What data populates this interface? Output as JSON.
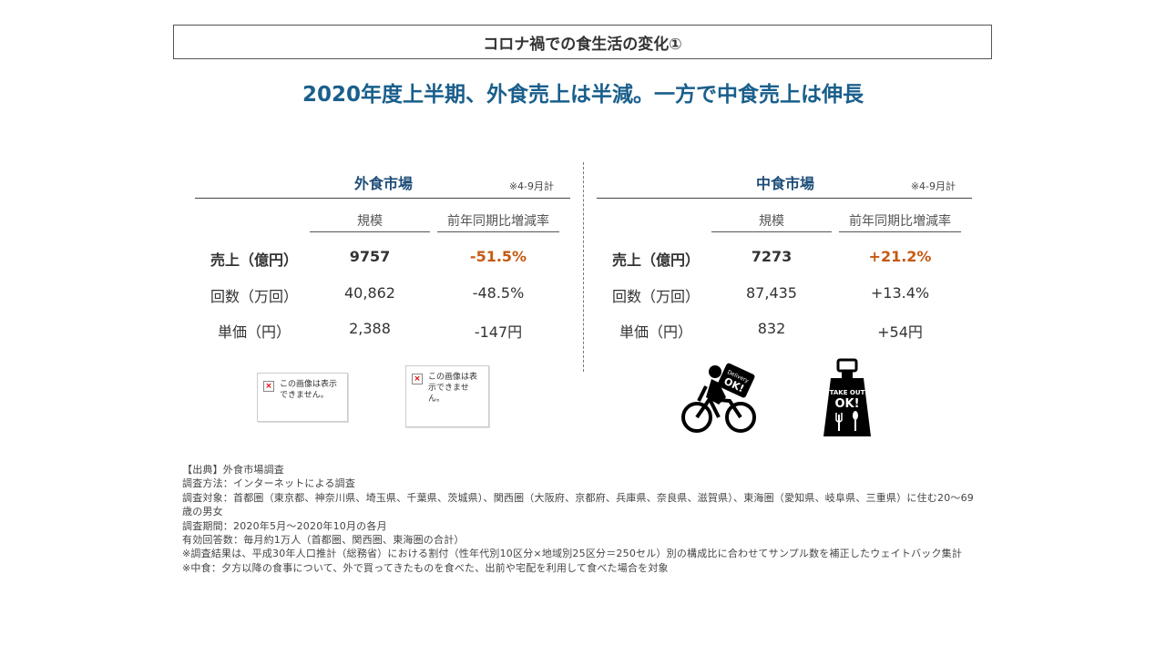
{
  "title": "コロナ禍での食生活の変化①",
  "subtitle": "2020年度上半期、外食売上は半減。一方で中食売上は伸長",
  "col_headers": {
    "scale": "規模",
    "yoy": "前年同期比増減率"
  },
  "period_note": "※4-9月計",
  "gaishoku": {
    "title": "外食市場",
    "rows": [
      {
        "label": "売上（億円）",
        "scale": "9757",
        "yoy": "-51.5%"
      },
      {
        "label": "回数（万回）",
        "scale": "40,862",
        "yoy": "-48.5%"
      },
      {
        "label": "単価（円）",
        "scale": "2,388",
        "yoy": "-147円"
      }
    ]
  },
  "nakashoku": {
    "title": "中食市場",
    "rows": [
      {
        "label": "売上（億円）",
        "scale": "7273",
        "yoy": "+21.2%"
      },
      {
        "label": "回数（万回）",
        "scale": "87,435",
        "yoy": "+13.4%"
      },
      {
        "label": "単価（円）",
        "scale": "832",
        "yoy": "+54円"
      }
    ]
  },
  "broken_image_1": "この画像は表示できません。",
  "broken_image_2": "この画像は表示できません。",
  "icons": {
    "delivery_bag_text1": "Delivery",
    "delivery_bag_text2": "OK!",
    "takeout_text1": "TAKE OUT",
    "takeout_text2": "OK!"
  },
  "source_lines": [
    "【出典】外食市場調査",
    "調査方法：インターネットによる調査",
    "調査対象：首都圏（東京都、神奈川県、埼玉県、千葉県、茨城県）、関西圏（大阪府、京都府、兵庫県、奈良県、滋賀県）、東海圏（愛知県、岐阜県、三重県）に住む20～69歳の男女",
    "調査期間：2020年5月～2020年10月の各月",
    "有効回答数：毎月約1万人（首都圏、関西圏、東海圏の合計）",
    "※調査結果は、平成30年人口推計（総務省）における割付（性年代別10区分×地域別25区分＝250セル）別の構成比に合わせてサンプル数を補正したウェイトバック集計",
    "※中食：夕方以降の食事について、外で買ってきたものを食べた、出前や宅配を利用して食べた場合を対象"
  ]
}
